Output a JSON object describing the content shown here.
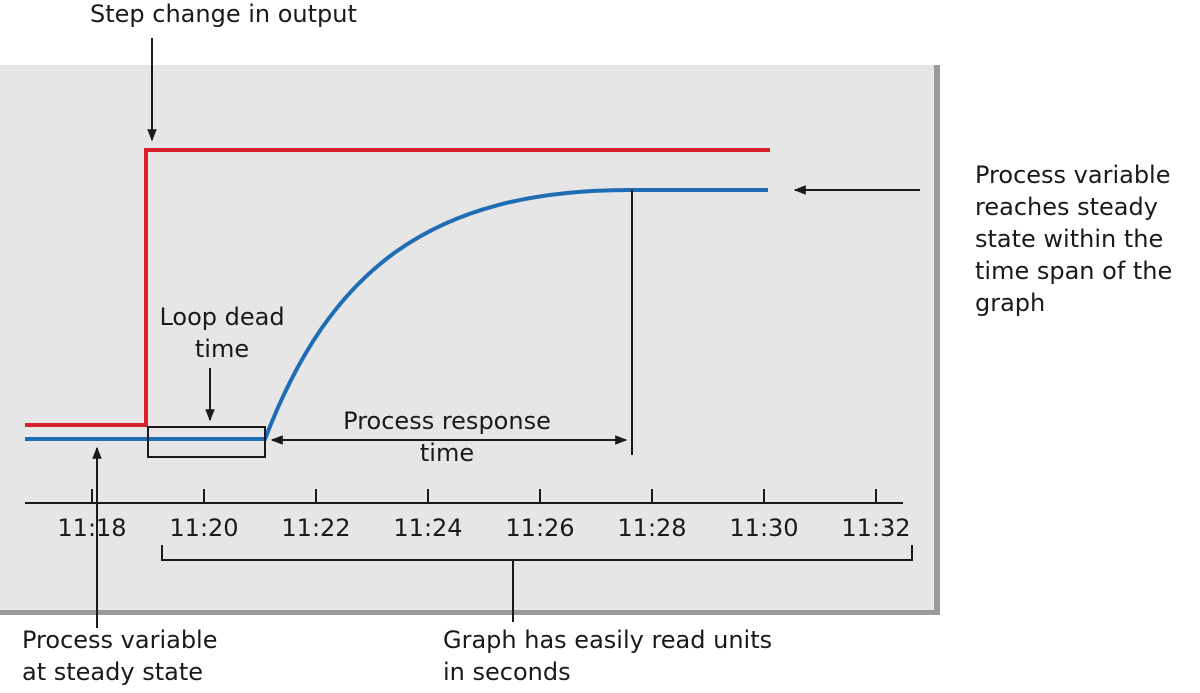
{
  "annotations": {
    "step_change": {
      "lines": [
        "Step change in output"
      ]
    },
    "dead_time": {
      "lines": [
        "Loop dead",
        "time"
      ]
    },
    "response_time": {
      "lines": [
        "Process response",
        "time"
      ]
    },
    "steady_reached": {
      "lines": [
        "Process variable",
        "reaches steady",
        "state within the",
        "time span of the",
        "graph"
      ]
    },
    "steady_state": {
      "lines": [
        "Process variable",
        "at steady state"
      ]
    },
    "units": {
      "lines": [
        "Graph has easily read units",
        "in seconds"
      ]
    }
  },
  "axis": {
    "ticks": [
      "11:18",
      "11:20",
      "11:22",
      "11:24",
      "11:26",
      "11:28",
      "11:30",
      "11:32"
    ]
  }
}
